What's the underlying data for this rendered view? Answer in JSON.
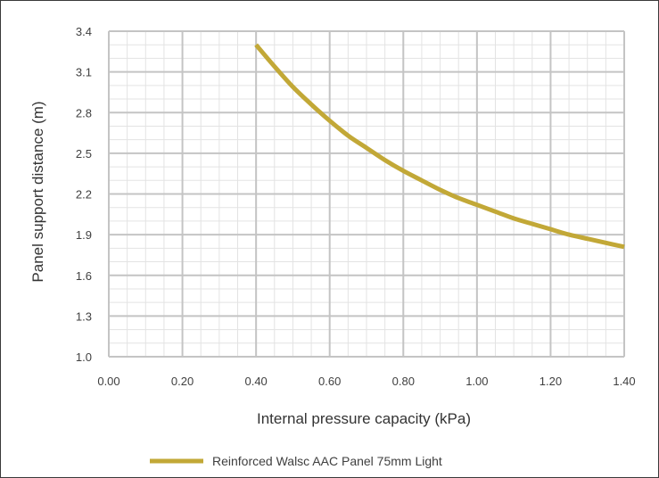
{
  "chart_data": {
    "type": "line",
    "xlabel": "Internal pressure capacity (kPa)",
    "ylabel": "Panel support distance (m)",
    "x_ticks": [
      "0.00",
      "0.20",
      "0.40",
      "0.60",
      "0.80",
      "1.00",
      "1.20",
      "1.40"
    ],
    "y_ticks": [
      "1.0",
      "1.3",
      "1.6",
      "1.9",
      "2.2",
      "2.5",
      "2.8",
      "3.1",
      "3.4"
    ],
    "xlim": [
      0,
      1.4
    ],
    "ylim": [
      1.0,
      3.4
    ],
    "grid": true,
    "minor_grid": true,
    "legend_position": "bottom",
    "series": [
      {
        "name": "Reinforced Walsc AAC Panel 75mm Light",
        "color": "#c2a837",
        "x": [
          0.4,
          0.45,
          0.5,
          0.55,
          0.6,
          0.65,
          0.7,
          0.75,
          0.8,
          0.85,
          0.9,
          0.95,
          1.0,
          1.05,
          1.1,
          1.15,
          1.2,
          1.25,
          1.3,
          1.35,
          1.4
        ],
        "y": [
          3.3,
          3.14,
          2.99,
          2.86,
          2.74,
          2.63,
          2.54,
          2.45,
          2.37,
          2.3,
          2.23,
          2.17,
          2.12,
          2.07,
          2.02,
          1.98,
          1.94,
          1.9,
          1.87,
          1.84,
          1.81
        ]
      }
    ]
  }
}
